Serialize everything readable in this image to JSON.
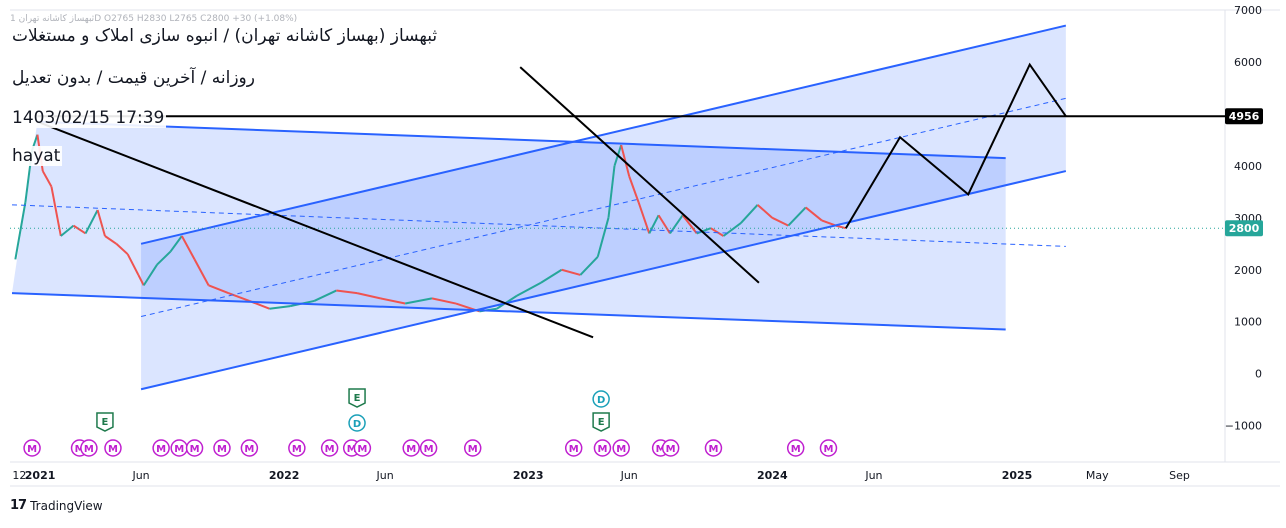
{
  "legend": "ثبهساز کاشانه تهران 1D O2765 H2830 L2765 C2800 +30 (+1.08%)",
  "overlay": {
    "title": "ثبهساز (بهساز کاشانه تهران) / انبوه سازی املاک و مستغلات",
    "subtitle": "روزانه / آخرین قیمت / بدون تعدیل",
    "datetime": "1403/02/15 17:39",
    "user": "hayat"
  },
  "footer": {
    "brand": "TradingView"
  },
  "colors": {
    "up": "#26a69a",
    "down": "#ef5350",
    "channel_line": "#2962ff",
    "channel_fill": "#2962ff",
    "black": "#000000",
    "event_m": "#c020d0",
    "event_e": "#1e7a4c",
    "event_d": "#1aa0b8"
  },
  "chart_data": {
    "type": "line",
    "symbol": "ثبهساز",
    "interval": "1D",
    "ohlc_last": {
      "open": 2765,
      "high": 2830,
      "low": 2765,
      "close": 2800,
      "change": 30,
      "change_pct": 1.08
    },
    "y_axis": {
      "ticks": [
        7000,
        6000,
        5000,
        4000,
        3000,
        2000,
        1000,
        0,
        -1000
      ],
      "ylim": [
        -1700,
        7000
      ]
    },
    "x_axis": {
      "ticks": [
        {
          "date": "2020-12-01",
          "label": "12"
        },
        {
          "date": "2021-01-01",
          "label": "2021"
        },
        {
          "date": "2021-06-01",
          "label": "Jun"
        },
        {
          "date": "2022-01-01",
          "label": "2022"
        },
        {
          "date": "2022-06-01",
          "label": "Jun"
        },
        {
          "date": "2023-01-01",
          "label": "2023"
        },
        {
          "date": "2023-06-01",
          "label": "Jun"
        },
        {
          "date": "2024-01-01",
          "label": "2024"
        },
        {
          "date": "2024-06-01",
          "label": "Jun"
        },
        {
          "date": "2025-01-01",
          "label": "2025"
        },
        {
          "date": "2025-05-01",
          "label": "May"
        },
        {
          "date": "2025-09-01",
          "label": "Sep"
        }
      ],
      "range": [
        "2020-11-17",
        "2025-11-08"
      ]
    },
    "price_labels": [
      {
        "value": 4956,
        "label": "4956",
        "color": "#000000"
      },
      {
        "value": 2800,
        "label": "2800",
        "color": "#26a69a"
      }
    ],
    "price_series": [
      {
        "x": "2020-11-25",
        "y": 2200
      },
      {
        "x": "2020-12-10",
        "y": 3300
      },
      {
        "x": "2020-12-20",
        "y": 4300
      },
      {
        "x": "2020-12-28",
        "y": 4600
      },
      {
        "x": "2021-01-05",
        "y": 3900
      },
      {
        "x": "2021-01-18",
        "y": 3600
      },
      {
        "x": "2021-02-01",
        "y": 2650
      },
      {
        "x": "2021-02-20",
        "y": 2850
      },
      {
        "x": "2021-03-10",
        "y": 2700
      },
      {
        "x": "2021-03-28",
        "y": 3150
      },
      {
        "x": "2021-04-08",
        "y": 2650
      },
      {
        "x": "2021-04-25",
        "y": 2500
      },
      {
        "x": "2021-05-12",
        "y": 2300
      },
      {
        "x": "2021-05-28",
        "y": 1900
      },
      {
        "x": "2021-06-05",
        "y": 1700
      },
      {
        "x": "2021-06-25",
        "y": 2100
      },
      {
        "x": "2021-07-15",
        "y": 2350
      },
      {
        "x": "2021-08-01",
        "y": 2650
      },
      {
        "x": "2021-08-20",
        "y": 2200
      },
      {
        "x": "2021-09-10",
        "y": 1700
      },
      {
        "x": "2021-10-10",
        "y": 1550
      },
      {
        "x": "2021-11-10",
        "y": 1400
      },
      {
        "x": "2021-12-10",
        "y": 1250
      },
      {
        "x": "2022-01-10",
        "y": 1300
      },
      {
        "x": "2022-02-15",
        "y": 1400
      },
      {
        "x": "2022-03-20",
        "y": 1600
      },
      {
        "x": "2022-04-20",
        "y": 1550
      },
      {
        "x": "2022-05-25",
        "y": 1450
      },
      {
        "x": "2022-07-01",
        "y": 1350
      },
      {
        "x": "2022-08-10",
        "y": 1450
      },
      {
        "x": "2022-09-15",
        "y": 1350
      },
      {
        "x": "2022-10-20",
        "y": 1200
      },
      {
        "x": "2022-11-15",
        "y": 1250
      },
      {
        "x": "2022-12-15",
        "y": 1500
      },
      {
        "x": "2023-01-20",
        "y": 1750
      },
      {
        "x": "2023-02-20",
        "y": 2000
      },
      {
        "x": "2023-03-20",
        "y": 1900
      },
      {
        "x": "2023-04-15",
        "y": 2250
      },
      {
        "x": "2023-05-01",
        "y": 3000
      },
      {
        "x": "2023-05-10",
        "y": 4000
      },
      {
        "x": "2023-05-20",
        "y": 4400
      },
      {
        "x": "2023-06-01",
        "y": 3800
      },
      {
        "x": "2023-06-15",
        "y": 3300
      },
      {
        "x": "2023-07-01",
        "y": 2700
      },
      {
        "x": "2023-07-15",
        "y": 3050
      },
      {
        "x": "2023-08-01",
        "y": 2700
      },
      {
        "x": "2023-08-20",
        "y": 3050
      },
      {
        "x": "2023-09-10",
        "y": 2700
      },
      {
        "x": "2023-10-01",
        "y": 2800
      },
      {
        "x": "2023-10-20",
        "y": 2650
      },
      {
        "x": "2023-11-15",
        "y": 2900
      },
      {
        "x": "2023-12-10",
        "y": 3250
      },
      {
        "x": "2024-01-01",
        "y": 3000
      },
      {
        "x": "2024-01-25",
        "y": 2850
      },
      {
        "x": "2024-02-20",
        "y": 3200
      },
      {
        "x": "2024-03-15",
        "y": 2950
      },
      {
        "x": "2024-04-05",
        "y": 2850
      },
      {
        "x": "2024-04-20",
        "y": 2800
      }
    ],
    "channels": [
      {
        "name": "descending",
        "upper": [
          {
            "x": "2020-12-28",
            "y": 4850
          },
          {
            "x": "2024-12-15",
            "y": 4150
          }
        ],
        "lower": [
          {
            "x": "2020-11-20",
            "y": 1550
          },
          {
            "x": "2024-12-15",
            "y": 850
          }
        ]
      },
      {
        "name": "ascending",
        "upper": [
          {
            "x": "2021-06-01",
            "y": 2500
          },
          {
            "x": "2025-03-15",
            "y": 6700
          }
        ],
        "lower": [
          {
            "x": "2021-06-01",
            "y": -300
          },
          {
            "x": "2025-03-15",
            "y": 3900
          }
        ]
      }
    ],
    "dashed_midlines": [
      [
        {
          "x": "2020-11-20",
          "y": 3250
        },
        {
          "x": "2025-03-15",
          "y": 2450
        }
      ],
      [
        {
          "x": "2021-06-01",
          "y": 1100
        },
        {
          "x": "2025-03-15",
          "y": 5300
        }
      ]
    ],
    "trendlines": [
      [
        {
          "x": "2020-12-28",
          "y": 4850
        },
        {
          "x": "2023-04-08",
          "y": 700
        }
      ],
      [
        {
          "x": "2022-12-20",
          "y": 5900
        },
        {
          "x": "2023-12-12",
          "y": 1750
        }
      ]
    ],
    "horizontal_line": {
      "y": 4956,
      "from": "2020-12-28"
    },
    "projection": [
      {
        "x": "2024-04-20",
        "y": 2800
      },
      {
        "x": "2024-07-10",
        "y": 4550
      },
      {
        "x": "2024-10-20",
        "y": 3450
      },
      {
        "x": "2025-01-20",
        "y": 5950
      },
      {
        "x": "2025-03-15",
        "y": 4956
      }
    ],
    "events": [
      {
        "type": "M",
        "x": "2020-12-20"
      },
      {
        "type": "M",
        "x": "2021-03-01"
      },
      {
        "type": "M",
        "x": "2021-03-15"
      },
      {
        "type": "M",
        "x": "2021-04-20"
      },
      {
        "type": "M",
        "x": "2021-07-01"
      },
      {
        "type": "M",
        "x": "2021-07-28"
      },
      {
        "type": "M",
        "x": "2021-08-20"
      },
      {
        "type": "M",
        "x": "2021-09-30"
      },
      {
        "type": "M",
        "x": "2021-11-10"
      },
      {
        "type": "M",
        "x": "2022-01-20"
      },
      {
        "type": "M",
        "x": "2022-03-10"
      },
      {
        "type": "M",
        "x": "2022-04-12"
      },
      {
        "type": "M",
        "x": "2022-04-28"
      },
      {
        "type": "M",
        "x": "2022-07-10"
      },
      {
        "type": "M",
        "x": "2022-08-05"
      },
      {
        "type": "M",
        "x": "2022-10-10"
      },
      {
        "type": "M",
        "x": "2023-03-10"
      },
      {
        "type": "M",
        "x": "2023-04-22"
      },
      {
        "type": "M",
        "x": "2023-05-20"
      },
      {
        "type": "M",
        "x": "2023-07-18"
      },
      {
        "type": "M",
        "x": "2023-08-02"
      },
      {
        "type": "M",
        "x": "2023-10-05"
      },
      {
        "type": "M",
        "x": "2024-02-05"
      },
      {
        "type": "M",
        "x": "2024-03-25"
      },
      {
        "type": "E",
        "x": "2021-04-08",
        "row": 1
      },
      {
        "type": "E",
        "x": "2022-04-20",
        "row": 2
      },
      {
        "type": "D",
        "x": "2022-04-20",
        "row": 1
      },
      {
        "type": "E",
        "x": "2023-04-20",
        "row": 1
      },
      {
        "type": "D",
        "x": "2023-04-20",
        "row": 2
      }
    ]
  }
}
